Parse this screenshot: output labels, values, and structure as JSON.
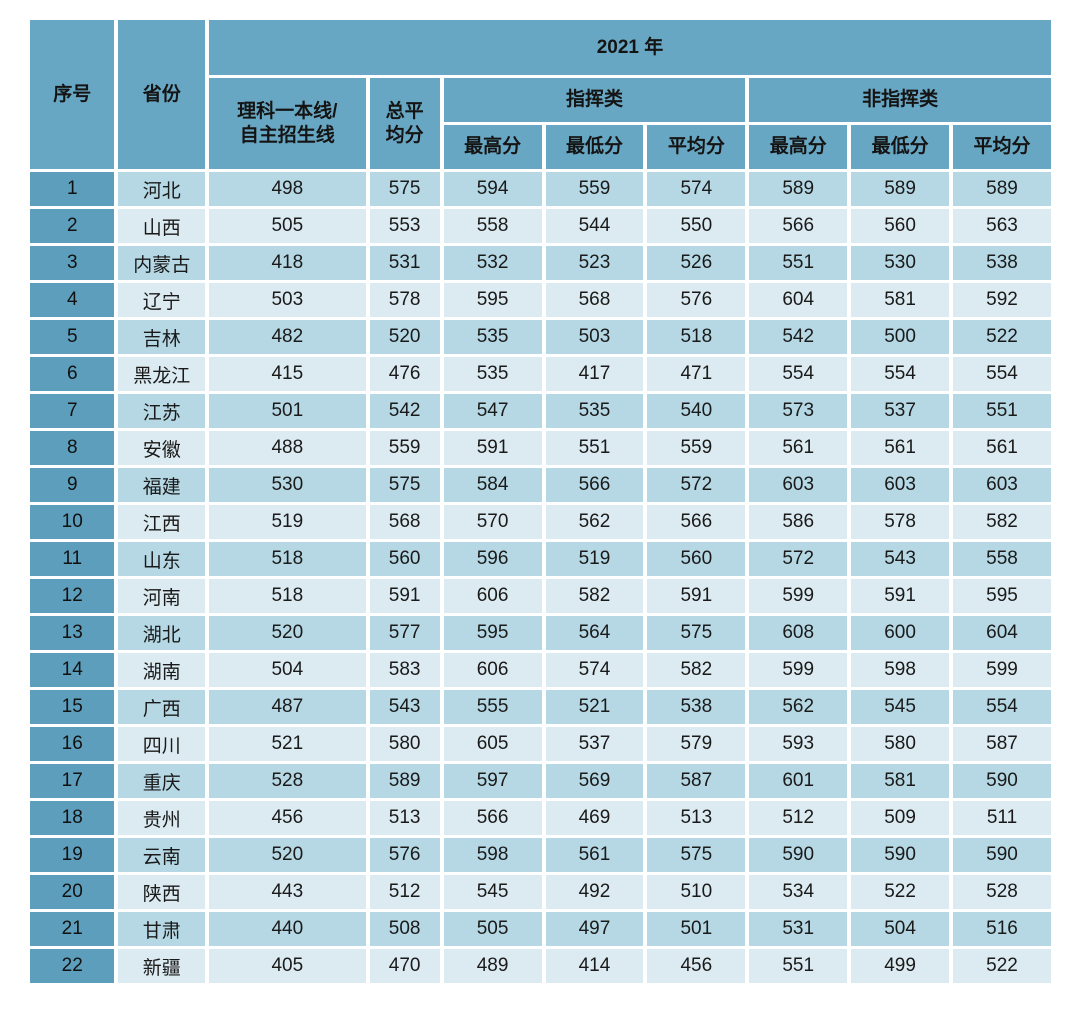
{
  "table": {
    "header": {
      "col_no": "序号",
      "col_province": "省份",
      "year_group": "2021 年",
      "col_science_line": "理科一本线/\n自主招生线",
      "col_total_avg": "总平\n均分",
      "group_command": "指挥类",
      "group_noncommand": "非指挥类",
      "cmd_max": "最高分",
      "cmd_min": "最低分",
      "cmd_avg": "平均分",
      "non_max": "最高分",
      "non_min": "最低分",
      "non_avg": "平均分"
    },
    "colors": {
      "header_blue": "#68a7c3",
      "index_blue": "#5c9ebb",
      "row_odd": "#b5d8e4",
      "row_even": "#dcebf1",
      "gap_white": "#ffffff",
      "text": "#1a1a1a"
    },
    "rows": [
      {
        "no": "1",
        "province": "河北",
        "line": "498",
        "avg_total": "575",
        "cmd_max": "594",
        "cmd_min": "559",
        "cmd_avg": "574",
        "non_max": "589",
        "non_min": "589",
        "non_avg": "589"
      },
      {
        "no": "2",
        "province": "山西",
        "line": "505",
        "avg_total": "553",
        "cmd_max": "558",
        "cmd_min": "544",
        "cmd_avg": "550",
        "non_max": "566",
        "non_min": "560",
        "non_avg": "563"
      },
      {
        "no": "3",
        "province": "内蒙古",
        "line": "418",
        "avg_total": "531",
        "cmd_max": "532",
        "cmd_min": "523",
        "cmd_avg": "526",
        "non_max": "551",
        "non_min": "530",
        "non_avg": "538"
      },
      {
        "no": "4",
        "province": "辽宁",
        "line": "503",
        "avg_total": "578",
        "cmd_max": "595",
        "cmd_min": "568",
        "cmd_avg": "576",
        "non_max": "604",
        "non_min": "581",
        "non_avg": "592"
      },
      {
        "no": "5",
        "province": "吉林",
        "line": "482",
        "avg_total": "520",
        "cmd_max": "535",
        "cmd_min": "503",
        "cmd_avg": "518",
        "non_max": "542",
        "non_min": "500",
        "non_avg": "522"
      },
      {
        "no": "6",
        "province": "黑龙江",
        "line": "415",
        "avg_total": "476",
        "cmd_max": "535",
        "cmd_min": "417",
        "cmd_avg": "471",
        "non_max": "554",
        "non_min": "554",
        "non_avg": "554"
      },
      {
        "no": "7",
        "province": "江苏",
        "line": "501",
        "avg_total": "542",
        "cmd_max": "547",
        "cmd_min": "535",
        "cmd_avg": "540",
        "non_max": "573",
        "non_min": "537",
        "non_avg": "551"
      },
      {
        "no": "8",
        "province": "安徽",
        "line": "488",
        "avg_total": "559",
        "cmd_max": "591",
        "cmd_min": "551",
        "cmd_avg": "559",
        "non_max": "561",
        "non_min": "561",
        "non_avg": "561"
      },
      {
        "no": "9",
        "province": "福建",
        "line": "530",
        "avg_total": "575",
        "cmd_max": "584",
        "cmd_min": "566",
        "cmd_avg": "572",
        "non_max": "603",
        "non_min": "603",
        "non_avg": "603"
      },
      {
        "no": "10",
        "province": "江西",
        "line": "519",
        "avg_total": "568",
        "cmd_max": "570",
        "cmd_min": "562",
        "cmd_avg": "566",
        "non_max": "586",
        "non_min": "578",
        "non_avg": "582"
      },
      {
        "no": "11",
        "province": "山东",
        "line": "518",
        "avg_total": "560",
        "cmd_max": "596",
        "cmd_min": "519",
        "cmd_avg": "560",
        "non_max": "572",
        "non_min": "543",
        "non_avg": "558"
      },
      {
        "no": "12",
        "province": "河南",
        "line": "518",
        "avg_total": "591",
        "cmd_max": "606",
        "cmd_min": "582",
        "cmd_avg": "591",
        "non_max": "599",
        "non_min": "591",
        "non_avg": "595"
      },
      {
        "no": "13",
        "province": "湖北",
        "line": "520",
        "avg_total": "577",
        "cmd_max": "595",
        "cmd_min": "564",
        "cmd_avg": "575",
        "non_max": "608",
        "non_min": "600",
        "non_avg": "604"
      },
      {
        "no": "14",
        "province": "湖南",
        "line": "504",
        "avg_total": "583",
        "cmd_max": "606",
        "cmd_min": "574",
        "cmd_avg": "582",
        "non_max": "599",
        "non_min": "598",
        "non_avg": "599"
      },
      {
        "no": "15",
        "province": "广西",
        "line": "487",
        "avg_total": "543",
        "cmd_max": "555",
        "cmd_min": "521",
        "cmd_avg": "538",
        "non_max": "562",
        "non_min": "545",
        "non_avg": "554"
      },
      {
        "no": "16",
        "province": "四川",
        "line": "521",
        "avg_total": "580",
        "cmd_max": "605",
        "cmd_min": "537",
        "cmd_avg": "579",
        "non_max": "593",
        "non_min": "580",
        "non_avg": "587"
      },
      {
        "no": "17",
        "province": "重庆",
        "line": "528",
        "avg_total": "589",
        "cmd_max": "597",
        "cmd_min": "569",
        "cmd_avg": "587",
        "non_max": "601",
        "non_min": "581",
        "non_avg": "590"
      },
      {
        "no": "18",
        "province": "贵州",
        "line": "456",
        "avg_total": "513",
        "cmd_max": "566",
        "cmd_min": "469",
        "cmd_avg": "513",
        "non_max": "512",
        "non_min": "509",
        "non_avg": "511"
      },
      {
        "no": "19",
        "province": "云南",
        "line": "520",
        "avg_total": "576",
        "cmd_max": "598",
        "cmd_min": "561",
        "cmd_avg": "575",
        "non_max": "590",
        "non_min": "590",
        "non_avg": "590"
      },
      {
        "no": "20",
        "province": "陕西",
        "line": "443",
        "avg_total": "512",
        "cmd_max": "545",
        "cmd_min": "492",
        "cmd_avg": "510",
        "non_max": "534",
        "non_min": "522",
        "non_avg": "528"
      },
      {
        "no": "21",
        "province": "甘肃",
        "line": "440",
        "avg_total": "508",
        "cmd_max": "505",
        "cmd_min": "497",
        "cmd_avg": "501",
        "non_max": "531",
        "non_min": "504",
        "non_avg": "516"
      },
      {
        "no": "22",
        "province": "新疆",
        "line": "405",
        "avg_total": "470",
        "cmd_max": "489",
        "cmd_min": "414",
        "cmd_avg": "456",
        "non_max": "551",
        "non_min": "499",
        "non_avg": "522"
      }
    ]
  }
}
